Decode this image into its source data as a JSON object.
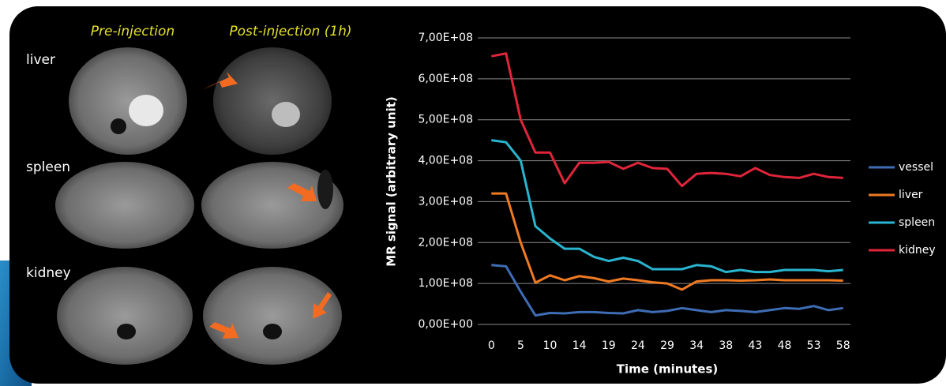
{
  "image_panel": {
    "column_titles": [
      "Pre-injection",
      "Post-injection (1h)"
    ],
    "row_labels": [
      "liver",
      "spleen",
      "kidney"
    ]
  },
  "chart_data": {
    "type": "line",
    "y_label": "MR signal (arbitrary unit)",
    "x_label": "Time (minutes)",
    "categories": [
      "0",
      null,
      "5",
      null,
      "10",
      null,
      "14",
      null,
      "19",
      null,
      "24",
      null,
      "29",
      null,
      "34",
      null,
      "38",
      null,
      "43",
      null,
      "48",
      null,
      "53",
      null,
      "58"
    ],
    "ylim": [
      0,
      700000000
    ],
    "yticks": [
      {
        "value": 0,
        "label": "0,00E+00"
      },
      {
        "value": 100000000,
        "label": "1,00E+08"
      },
      {
        "value": 200000000,
        "label": "2,00E+08"
      },
      {
        "value": 300000000,
        "label": "3,00E+08"
      },
      {
        "value": 400000000,
        "label": "4,00E+08"
      },
      {
        "value": 500000000,
        "label": "5,00E+08"
      },
      {
        "value": 600000000,
        "label": "6,00E+08"
      },
      {
        "value": 700000000,
        "label": "7,00E+08"
      }
    ],
    "grid": true,
    "legend": "right",
    "series": [
      {
        "name": "vessel",
        "color": "#3e6db5",
        "values": [
          145000000,
          142000000,
          80000000,
          22000000,
          28000000,
          27000000,
          30000000,
          30000000,
          28000000,
          27000000,
          35000000,
          30000000,
          33000000,
          40000000,
          35000000,
          30000000,
          35000000,
          33000000,
          30000000,
          35000000,
          40000000,
          38000000,
          45000000,
          35000000,
          40000000
        ]
      },
      {
        "name": "liver",
        "color": "#f07a22",
        "values": [
          320000000,
          320000000,
          200000000,
          102000000,
          120000000,
          108000000,
          118000000,
          113000000,
          105000000,
          112000000,
          108000000,
          103000000,
          100000000,
          85000000,
          105000000,
          108000000,
          108000000,
          107000000,
          108000000,
          110000000,
          108000000,
          108000000,
          108000000,
          108000000,
          107000000
        ]
      },
      {
        "name": "spleen",
        "color": "#29b5cf",
        "values": [
          450000000,
          445000000,
          400000000,
          240000000,
          210000000,
          185000000,
          185000000,
          165000000,
          155000000,
          163000000,
          155000000,
          135000000,
          135000000,
          135000000,
          145000000,
          142000000,
          128000000,
          133000000,
          128000000,
          128000000,
          133000000,
          133000000,
          133000000,
          130000000,
          133000000
        ]
      },
      {
        "name": "kidney",
        "color": "#e0253a",
        "values": [
          655000000,
          662000000,
          500000000,
          420000000,
          420000000,
          345000000,
          395000000,
          395000000,
          397000000,
          380000000,
          395000000,
          382000000,
          380000000,
          338000000,
          368000000,
          370000000,
          368000000,
          362000000,
          382000000,
          365000000,
          360000000,
          358000000,
          368000000,
          360000000,
          358000000
        ]
      }
    ]
  }
}
